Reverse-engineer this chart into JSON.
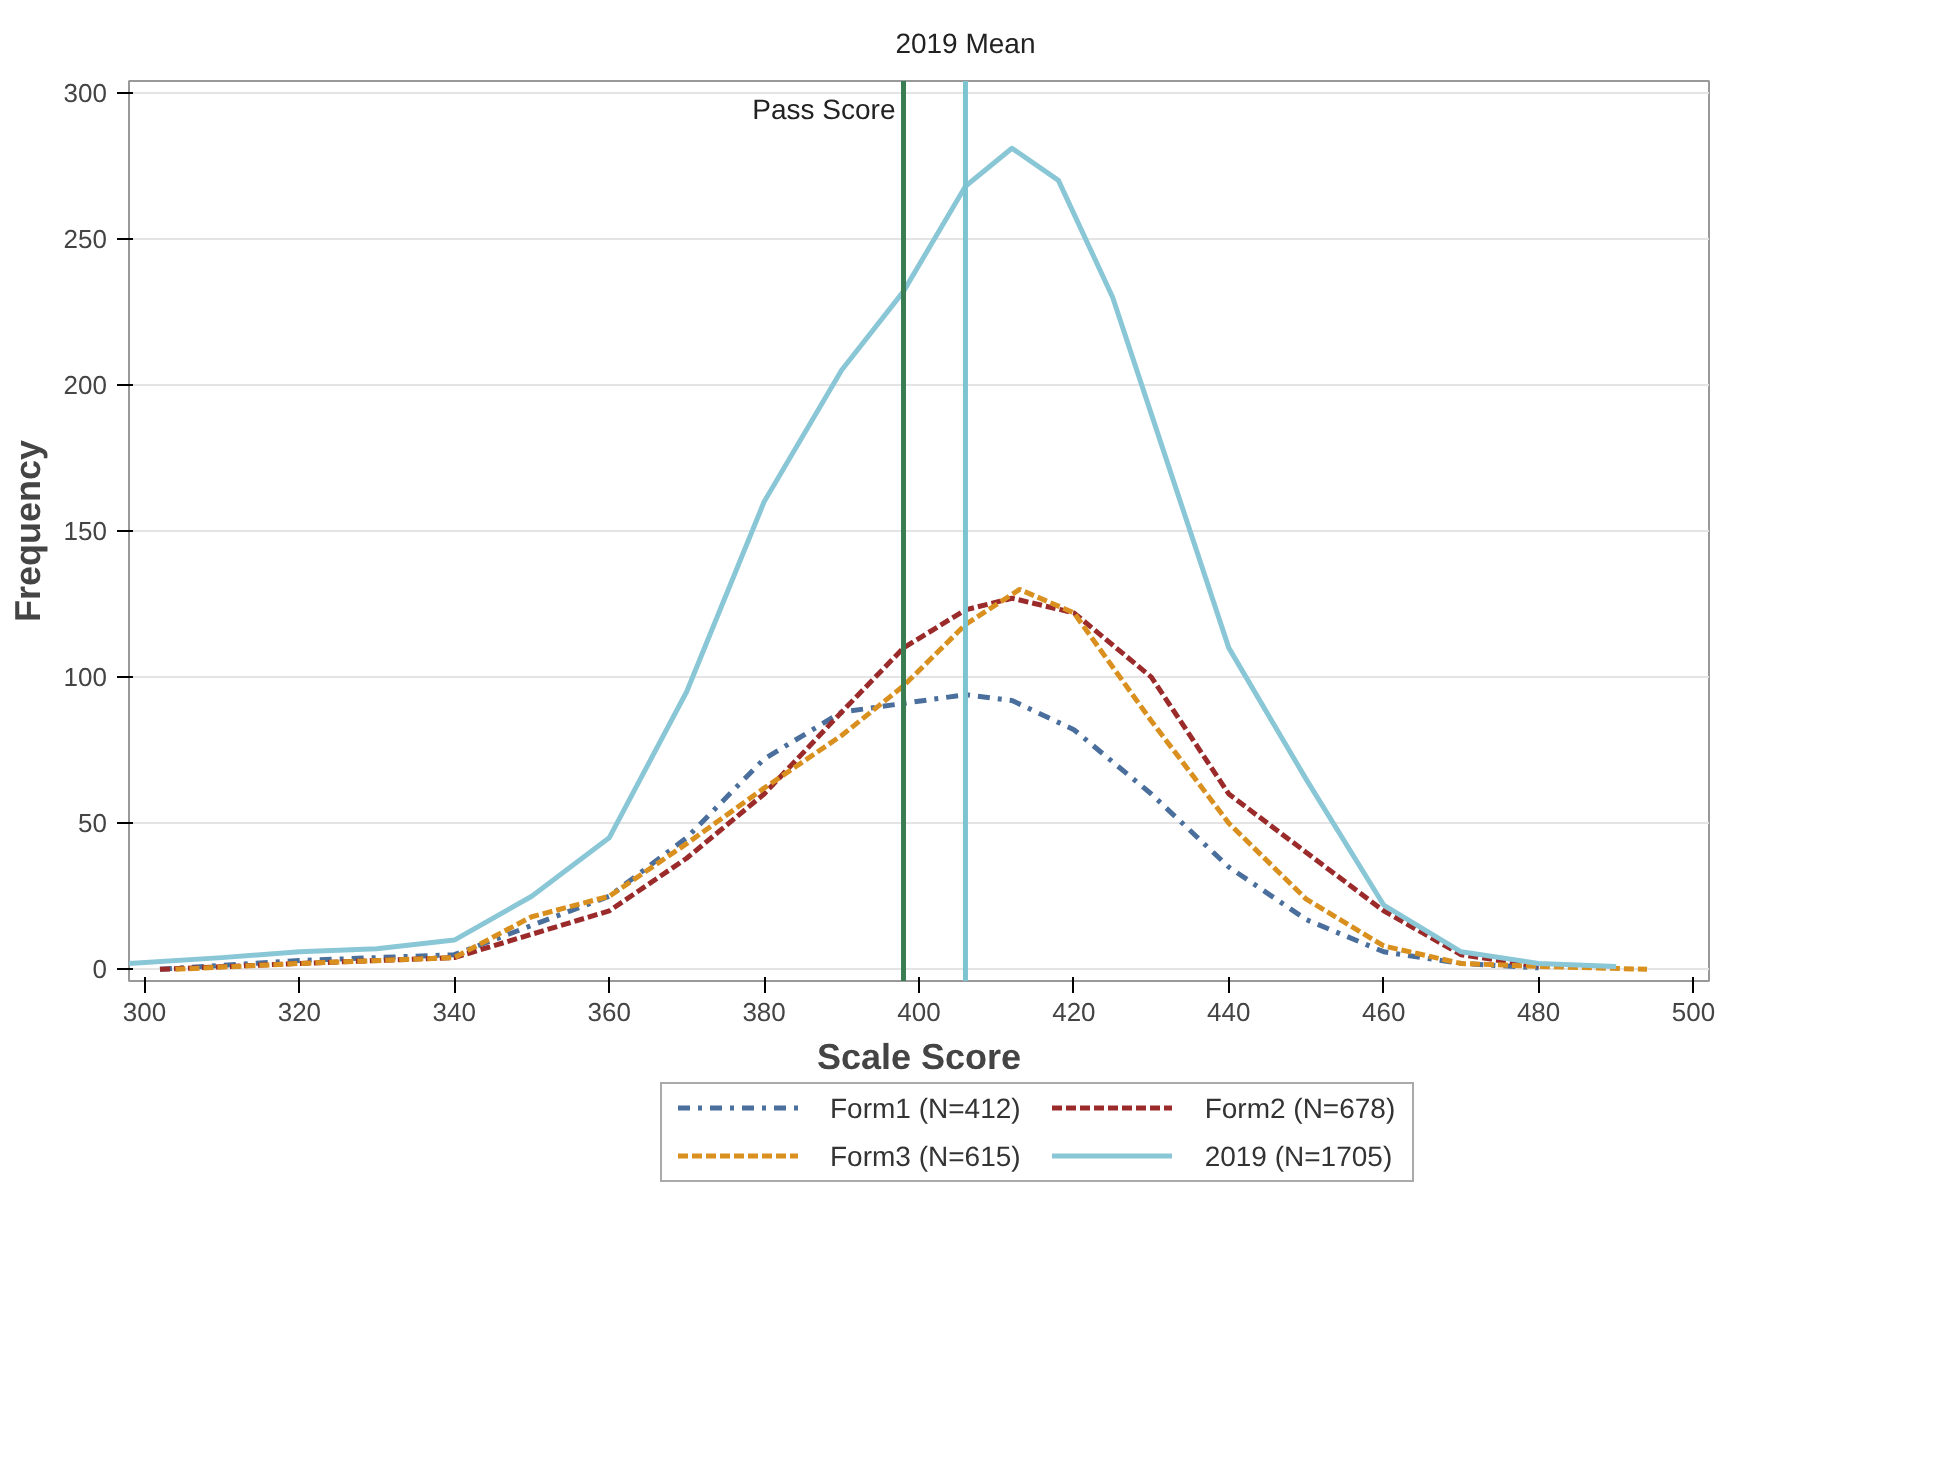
{
  "chart_data": {
    "type": "line",
    "xlabel": "Scale Score",
    "ylabel": "Frequency",
    "xlim": [
      298,
      502
    ],
    "ylim": [
      -4,
      304
    ],
    "xticks": [
      300,
      320,
      340,
      360,
      380,
      400,
      420,
      440,
      460,
      480,
      500
    ],
    "yticks": [
      0,
      50,
      100,
      150,
      200,
      250,
      300
    ],
    "grid": "y",
    "legend": "bottom",
    "marker": "none",
    "ref_lines": [
      {
        "axis": "x",
        "value": 398,
        "label": "Pass Score",
        "color": "#3a7d52",
        "line_style": "solid"
      },
      {
        "axis": "x",
        "value": 406,
        "label": "2019 Mean",
        "color": "#7cc4d0",
        "line_style": "solid"
      }
    ],
    "series": [
      {
        "name": "Form1 (N=412)",
        "color": "#4a6f9c",
        "line_style": "dashdot",
        "x": [
          302,
          320,
          340,
          350,
          360,
          370,
          380,
          390,
          398,
          406,
          412,
          420,
          430,
          440,
          450,
          460,
          470,
          480
        ],
        "values": [
          0,
          3,
          5,
          15,
          25,
          45,
          72,
          88,
          91,
          94,
          92,
          82,
          60,
          35,
          17,
          6,
          2,
          0.5
        ]
      },
      {
        "name": "Form2 (N=678)",
        "color": "#9b2a2a",
        "line_style": "dashed",
        "x": [
          302,
          320,
          340,
          350,
          360,
          370,
          380,
          390,
          398,
          406,
          412,
          420,
          430,
          440,
          450,
          460,
          470,
          480
        ],
        "values": [
          0,
          2,
          4,
          12,
          20,
          38,
          60,
          88,
          110,
          123,
          127,
          122,
          100,
          60,
          40,
          20,
          5,
          1
        ]
      },
      {
        "name": "Form3 (N=615)",
        "color": "#d9901f",
        "line_style": "dashed",
        "x": [
          304,
          320,
          340,
          350,
          360,
          370,
          380,
          390,
          398,
          406,
          413,
          420,
          430,
          440,
          450,
          460,
          470,
          480,
          494
        ],
        "values": [
          0,
          2,
          4,
          18,
          25,
          43,
          62,
          80,
          97,
          118,
          130,
          122,
          85,
          50,
          24,
          8,
          2,
          1,
          0
        ]
      },
      {
        "name": "2019 (N=1705)",
        "color": "#89c6d6",
        "line_style": "solid",
        "x": [
          298,
          310,
          320,
          330,
          340,
          350,
          360,
          370,
          380,
          390,
          398,
          406,
          412,
          418,
          425,
          430,
          440,
          450,
          460,
          470,
          480,
          490
        ],
        "values": [
          2,
          4,
          6,
          7,
          10,
          25,
          45,
          95,
          160,
          205,
          232,
          268,
          281,
          270,
          230,
          190,
          110,
          65,
          22,
          6,
          2,
          1
        ]
      }
    ]
  }
}
